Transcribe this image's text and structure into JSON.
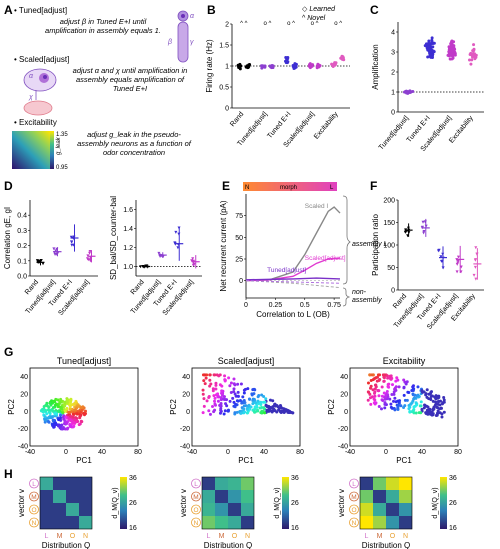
{
  "panels": {
    "A": {
      "letter": "A",
      "items": [
        {
          "title": "Tuned[adjust]",
          "desc": "adjust β in Tuned E+I until amplification in assembly equals 1."
        },
        {
          "title": "Scaled[adjust]",
          "desc": "adjust α and χ until amplification in assembly equals amplification of Tuned E+I"
        },
        {
          "title": "Excitability",
          "desc": "adjust g_leak in the pseudo-assembly neurons as a function of odor concentration"
        }
      ],
      "schematic_labels": {
        "alpha": "α",
        "beta": "β",
        "gamma": "γ",
        "chi": "χ"
      },
      "heatmap": {
        "label": "g_leak",
        "max": "1.35",
        "min": "0.95",
        "colors": [
          "#2e0f6b",
          "#2c7fb8",
          "#41b6a0",
          "#ffe600"
        ]
      }
    },
    "B": {
      "letter": "B",
      "legend": {
        "learned": "Learned",
        "novel": "Novel"
      },
      "markers": {
        "learned": "◇",
        "novel": "^"
      }
    },
    "C": {
      "letter": "C"
    },
    "D": {
      "letter": "D"
    },
    "E": {
      "letter": "E",
      "bar_labels": {
        "left": "N",
        "mid": "morph",
        "right": "L"
      },
      "curve_labels": {
        "scaled_i": "Scaled I",
        "scaled_adj": "Scaled[adjust]",
        "tuned_adj": "Tuned[adjust]"
      },
      "brace_labels": {
        "assembly": "assembly L",
        "non_assembly_1": "non-",
        "non_assembly_2": "assembly"
      }
    },
    "F": {
      "letter": "F"
    },
    "G": {
      "letter": "G",
      "titles": [
        "Tuned[adjust]",
        "Scaled[adjust]",
        "Excitability"
      ],
      "xlabel": "PC1",
      "ylabel": "PC2",
      "xticks": [
        "-40",
        "0",
        "40",
        "80"
      ],
      "yticks": [
        "40",
        "20",
        "0",
        "-20",
        "-40"
      ]
    },
    "H": {
      "letter": "H",
      "ylabel": "vector v",
      "xlabel": "Distribution Q",
      "row_labels": [
        "L",
        "M",
        "O",
        "N"
      ],
      "col_labels": [
        "L",
        "M",
        "O",
        "N"
      ],
      "row_label_colors": [
        "#d070c8",
        "#cc6a3a",
        "#e8a030",
        "#e8a030"
      ],
      "colorbar_label": "d_M(Q_v)",
      "colorbar_ticks": [
        "36",
        "26",
        "16"
      ],
      "matrices": [
        [
          [
            26,
            18,
            18,
            18
          ],
          [
            18,
            26,
            18,
            18
          ],
          [
            18,
            18,
            26,
            18
          ],
          [
            18,
            18,
            18,
            26
          ]
        ],
        [
          [
            18,
            26,
            27,
            30
          ],
          [
            26,
            18,
            24,
            28
          ],
          [
            27,
            24,
            18,
            26
          ],
          [
            30,
            28,
            26,
            18
          ]
        ],
        [
          [
            18,
            30,
            34,
            36
          ],
          [
            30,
            18,
            26,
            32
          ],
          [
            34,
            26,
            18,
            24
          ],
          [
            36,
            32,
            24,
            18
          ]
        ]
      ]
    }
  },
  "chart_data": [
    {
      "type": "scatter",
      "panel": "B",
      "categories": [
        "Rand",
        "Tuned[adjust]",
        "Tuned E+I",
        "Scaled[adjust]",
        "Excitability"
      ],
      "ylabel": "Firing rate (Hz)",
      "ylim": [
        0,
        2
      ],
      "yticks": [
        0,
        0.5,
        1,
        1.5,
        2
      ],
      "reference_line": 1,
      "series": [
        {
          "name": "Learned",
          "color": [
            "#000000",
            "#8c3fd0",
            "#3d2ed2",
            "#c03ac8",
            "#e05ac0"
          ],
          "values": [
            1.0,
            1.0,
            1.15,
            1.0,
            1.05
          ]
        },
        {
          "name": "Novel",
          "color": [
            "#000000",
            "#8c3fd0",
            "#3d2ed2",
            "#c03ac8",
            "#e05ac0"
          ],
          "values": [
            1.0,
            1.0,
            1.0,
            1.0,
            1.2
          ]
        }
      ],
      "significance": [
        "^ ^",
        "o ^",
        "o ^",
        "o ^",
        "o ^"
      ]
    },
    {
      "type": "scatter",
      "panel": "C",
      "categories": [
        "Tuned[adjust]",
        "Tuned E+I",
        "Scaled[adjust]",
        "Excitability"
      ],
      "ylabel": "Amplification",
      "ylim": [
        0,
        4.5
      ],
      "yticks": [
        0,
        1,
        2,
        3,
        4
      ],
      "reference_line": 1,
      "colors": [
        "#8c3fd0",
        "#3d2ed2",
        "#c03ac8",
        "#e05ac0"
      ],
      "means": [
        1.0,
        3.2,
        3.1,
        2.9
      ],
      "spreads": [
        0.1,
        0.6,
        0.6,
        0.5
      ]
    },
    {
      "type": "scatter",
      "panel": "D-left",
      "categories": [
        "Rand",
        "Tuned[adjust]",
        "Tuned E+I",
        "Scaled[adjust]"
      ],
      "ylabel": "Correlation gE, gI",
      "ylim": [
        0,
        0.5
      ],
      "yticks": [
        0,
        0.1,
        0.2,
        0.3,
        0.4
      ],
      "colors": [
        "#000000",
        "#8c3fd0",
        "#3d2ed2",
        "#c03ac8"
      ],
      "means": [
        0.09,
        0.16,
        0.25,
        0.13
      ],
      "err": [
        0.02,
        0.03,
        0.09,
        0.04
      ]
    },
    {
      "type": "scatter",
      "panel": "D-right",
      "categories": [
        "Rand",
        "Tuned[adjust]",
        "Tuned E+I",
        "Scaled[adjust]"
      ],
      "ylabel": "SD_bal/SD_counter-bal",
      "ylim": [
        0.9,
        1.7
      ],
      "yticks": [
        1.0,
        1.2,
        1.4,
        1.6
      ],
      "reference_line": 1,
      "colors": [
        "#000000",
        "#8c3fd0",
        "#3d2ed2",
        "#c03ac8"
      ],
      "means": [
        1.0,
        1.12,
        1.24,
        1.05
      ],
      "err": [
        0.01,
        0.03,
        0.18,
        0.07
      ]
    },
    {
      "type": "line",
      "panel": "E",
      "xlabel": "Correlation to L (OB)",
      "ylabel": "Net recurrent current (pA)",
      "xlim": [
        0,
        0.8
      ],
      "ylim": [
        -20,
        100
      ],
      "xticks": [
        0,
        0.25,
        0.5,
        0.75
      ],
      "yticks": [
        0,
        25,
        50,
        75
      ],
      "series": [
        {
          "name": "Scaled I",
          "color": "#888888",
          "x": [
            0,
            0.2,
            0.4,
            0.5,
            0.6,
            0.7,
            0.75,
            0.8
          ],
          "y": [
            0,
            1,
            10,
            30,
            55,
            80,
            85,
            78
          ]
        },
        {
          "name": "Scaled[adjust]",
          "color": "#e03ad0",
          "x": [
            0,
            0.2,
            0.4,
            0.5,
            0.6,
            0.7,
            0.8
          ],
          "y": [
            0,
            1,
            5,
            12,
            20,
            25,
            26
          ]
        },
        {
          "name": "Tuned[adjust]",
          "color": "#7a30c8",
          "x": [
            0,
            0.2,
            0.4,
            0.6,
            0.8
          ],
          "y": [
            1,
            1.5,
            2,
            3,
            2
          ]
        },
        {
          "name": "non-assembly gray",
          "color": "#aaaaaa",
          "x": [
            0,
            0.4,
            0.8
          ],
          "y": [
            0,
            -3,
            -8
          ]
        },
        {
          "name": "non-assembly purple",
          "color": "#b070e0",
          "x": [
            0,
            0.4,
            0.8
          ],
          "y": [
            0,
            -1.5,
            -3
          ]
        }
      ]
    },
    {
      "type": "scatter",
      "panel": "F",
      "categories": [
        "Rand",
        "Tuned[adjust]",
        "Tuned E+I",
        "Scaled[adjust]",
        "Excitability"
      ],
      "ylabel": "Participation ratio",
      "ylim": [
        0,
        200
      ],
      "yticks": [
        0,
        50,
        100,
        150,
        200
      ],
      "colors": [
        "#000000",
        "#8c3fd0",
        "#3d2ed2",
        "#c03ac8",
        "#e05ac0"
      ],
      "means": [
        133,
        138,
        72,
        68,
        58
      ],
      "err": [
        15,
        20,
        25,
        30,
        35
      ]
    }
  ]
}
